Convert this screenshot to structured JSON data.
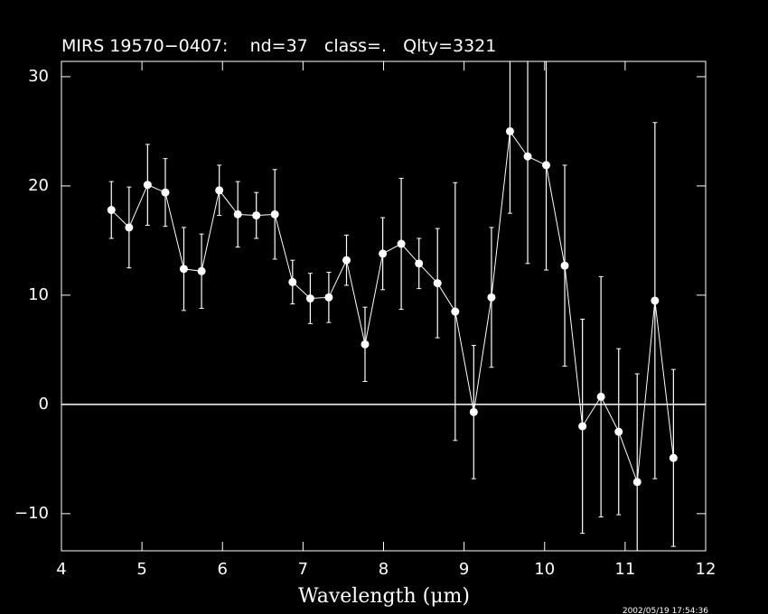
{
  "chart_data": {
    "type": "errorbar",
    "title": "MIRS 19570−0407:    nd=37   class=.   Qlty=3321",
    "x_label": "Wavelength (μm)",
    "timestamp": "2002/05/19 17:54:36",
    "color": "#ffffff",
    "hline": 0,
    "xlim": [
      4,
      12
    ],
    "xticks": [
      4,
      5,
      6,
      7,
      8,
      9,
      10,
      11,
      12
    ],
    "ylim": [
      -13.4,
      31.4
    ],
    "yticks": [
      {
        "value": -10,
        "label": "−10"
      },
      0,
      10,
      20,
      30
    ],
    "x": [
      4.62,
      4.84,
      5.07,
      5.29,
      5.52,
      5.74,
      5.96,
      6.19,
      6.42,
      6.65,
      6.87,
      7.09,
      7.32,
      7.54,
      7.77,
      7.99,
      8.22,
      8.44,
      8.67,
      8.89,
      9.12,
      9.34,
      9.57,
      9.79,
      10.02,
      10.25,
      10.47,
      10.7,
      10.92,
      11.15,
      11.37,
      11.6
    ],
    "values": [
      17.8,
      16.2,
      20.1,
      19.4,
      12.4,
      12.2,
      19.6,
      17.4,
      17.3,
      17.4,
      11.2,
      9.7,
      9.8,
      13.2,
      5.5,
      13.8,
      14.7,
      12.9,
      11.1,
      8.5,
      -0.7,
      9.8,
      25.0,
      22.7,
      21.9,
      12.7,
      -2.0,
      0.7,
      -2.5,
      -7.1,
      9.5,
      -4.9
    ],
    "errors": [
      2.6,
      3.7,
      3.7,
      3.1,
      3.8,
      3.4,
      2.3,
      3.0,
      2.1,
      4.1,
      2.0,
      2.3,
      2.3,
      2.3,
      3.4,
      3.3,
      6.0,
      2.3,
      5.0,
      11.8,
      6.1,
      6.4,
      7.5,
      9.8,
      9.6,
      9.2,
      9.8,
      11.0,
      7.6,
      9.9,
      16.3,
      8.1
    ]
  }
}
